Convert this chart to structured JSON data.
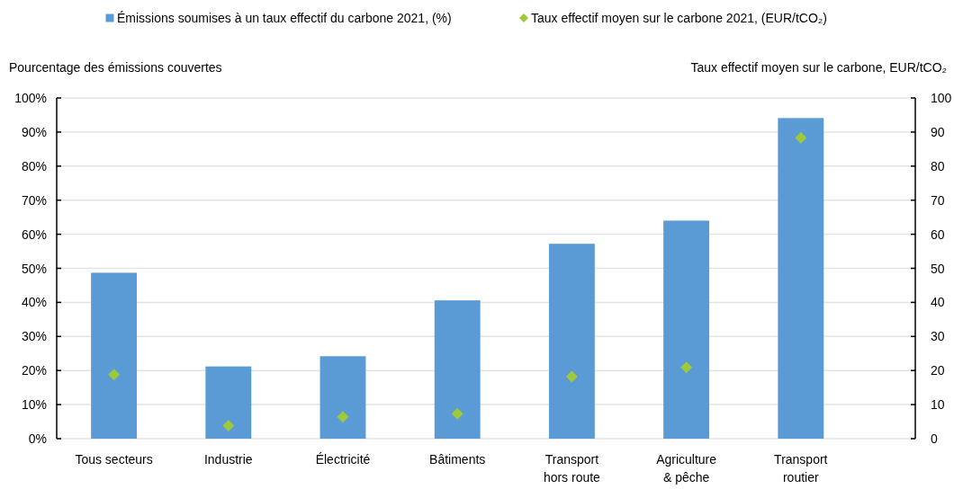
{
  "chart_data": {
    "type": "bar",
    "categories": [
      "Tous secteurs",
      "Industrie",
      "Électricité",
      "Bâtiments",
      "Transport hors route",
      "Agriculture & pêche",
      "Transport routier"
    ],
    "series": [
      {
        "name": "Émissions soumises à un taux effectif du carbone 2021, (%)",
        "color": "#5b9bd5",
        "values": [
          48.7,
          21.2,
          24.2,
          40.6,
          57.2,
          64.0,
          94.1
        ]
      },
      {
        "name": "Taux effectif moyen sur le carbone 2021, (EUR/tCO₂)",
        "type": "scatter",
        "axis": "y2",
        "color": "#9dc93b",
        "values": [
          18.8,
          3.8,
          6.4,
          7.3,
          18.2,
          20.9,
          88.3
        ]
      }
    ],
    "ylabel": "Pourcentage des émissions couvertes",
    "y2label": "Taux effectif moyen sur le carbone, EUR/tCO₂",
    "ylim": [
      0,
      100
    ],
    "yticks": [
      {
        "value": 0,
        "label": "0%"
      },
      {
        "value": 10,
        "label": "10%"
      },
      {
        "value": 20,
        "label": "20%"
      },
      {
        "value": 30,
        "label": "30%"
      },
      {
        "value": 40,
        "label": "40%"
      },
      {
        "value": 50,
        "label": "50%"
      },
      {
        "value": 60,
        "label": "60%"
      },
      {
        "value": 70,
        "label": "70%"
      },
      {
        "value": 80,
        "label": "80%"
      },
      {
        "value": 90,
        "label": "90%"
      },
      {
        "value": 100,
        "label": "100%"
      }
    ],
    "y2lim": [
      0,
      100
    ],
    "y2ticks": [
      0,
      10,
      20,
      30,
      40,
      50,
      60,
      70,
      80,
      90,
      100
    ],
    "grid": "y",
    "legend": "top",
    "marker": "diamond"
  }
}
